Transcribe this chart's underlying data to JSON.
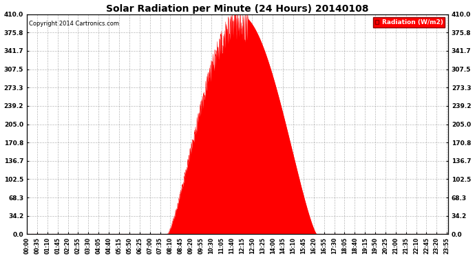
{
  "title": "Solar Radiation per Minute (24 Hours) 20140108",
  "copyright": "Copyright 2014 Cartronics.com",
  "legend_label": "Radiation (W/m2)",
  "background_color": "#ffffff",
  "plot_bg_color": "#ffffff",
  "fill_color": "#ff0000",
  "line_color": "#ff0000",
  "grid_color": "#888888",
  "dashed_line_color": "#ff0000",
  "ylim": [
    0.0,
    410.0
  ],
  "yticks": [
    0.0,
    34.2,
    68.3,
    102.5,
    136.7,
    170.8,
    205.0,
    239.2,
    273.3,
    307.5,
    341.7,
    375.8,
    410.0
  ],
  "num_minutes": 1440,
  "peak_value": 410.0
}
